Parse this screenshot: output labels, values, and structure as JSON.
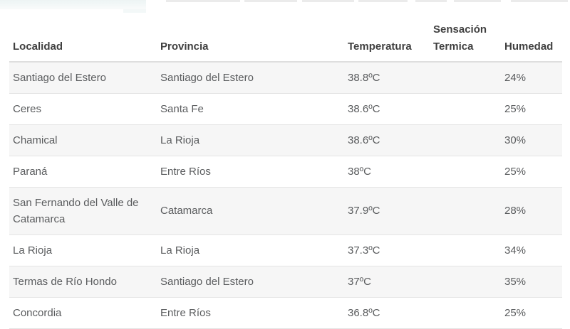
{
  "table": {
    "columns": {
      "localidad": "Localidad",
      "provincia": "Provincia",
      "temperatura": "Temperatura",
      "sensacion": "Sensación Termica",
      "humedad": "Humedad"
    },
    "rows": [
      {
        "localidad": "Santiago del Estero",
        "provincia": "Santiago del Estero",
        "temperatura": "38.8ºC",
        "sensacion": "",
        "humedad": "24%"
      },
      {
        "localidad": "Ceres",
        "provincia": "Santa Fe",
        "temperatura": "38.6ºC",
        "sensacion": "",
        "humedad": "25%"
      },
      {
        "localidad": "Chamical",
        "provincia": "La Rioja",
        "temperatura": "38.6ºC",
        "sensacion": "",
        "humedad": "30%"
      },
      {
        "localidad": "Paraná",
        "provincia": "Entre Ríos",
        "temperatura": "38ºC",
        "sensacion": "",
        "humedad": "25%"
      },
      {
        "localidad": "San Fernando del Valle de Catamarca",
        "provincia": "Catamarca",
        "temperatura": "37.9ºC",
        "sensacion": "",
        "humedad": "28%"
      },
      {
        "localidad": "La Rioja",
        "provincia": "La Rioja",
        "temperatura": "37.3ºC",
        "sensacion": "",
        "humedad": "34%"
      },
      {
        "localidad": "Termas de Río Hondo",
        "provincia": "Santiago del Estero",
        "temperatura": "37ºC",
        "sensacion": "",
        "humedad": "35%"
      },
      {
        "localidad": "Concordia",
        "provincia": "Entre Ríos",
        "temperatura": "36.8ºC",
        "sensacion": "",
        "humedad": "25%"
      }
    ]
  },
  "colors": {
    "row_shaded": "#f6f6f6",
    "divider": "#e4e4e4",
    "header_text": "#404040",
    "body_text": "#5a5c5e",
    "top_block": "#edf4f4"
  }
}
